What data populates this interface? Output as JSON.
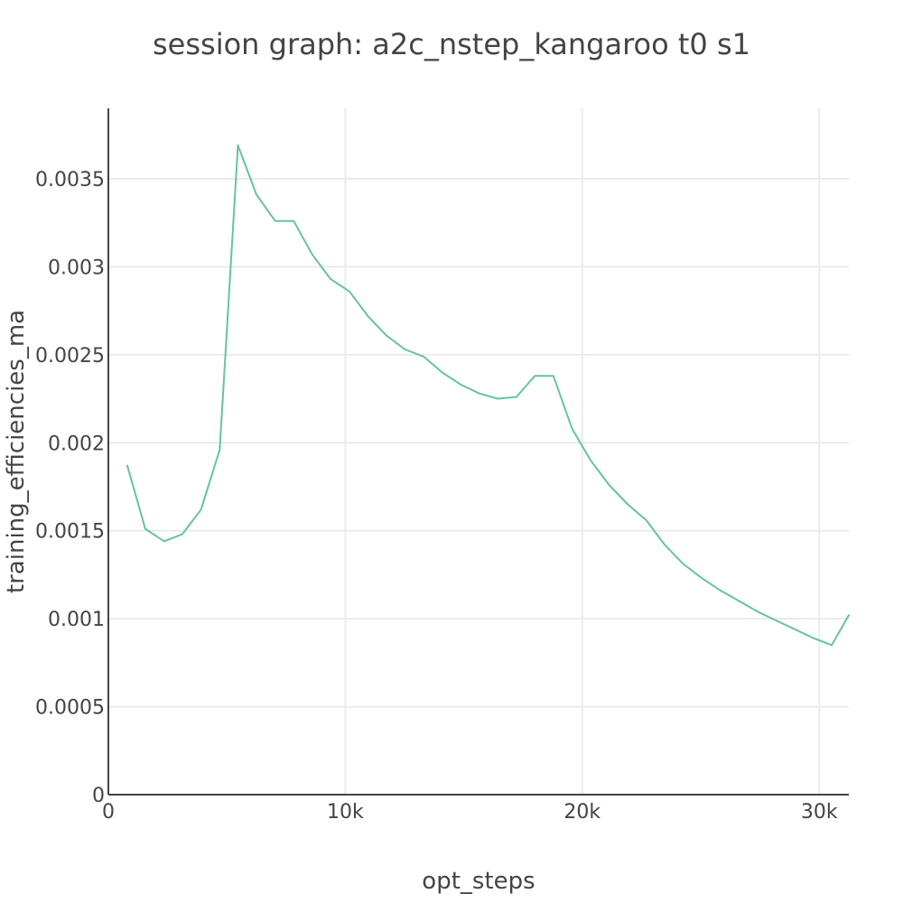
{
  "colors": {
    "series": "#66c2a5",
    "text": "#444444",
    "grid": "#ebebeb",
    "axis": "#444444"
  },
  "chart_data": {
    "type": "line",
    "title": "session graph: a2c_nstep_kangaroo t0 s1",
    "xlabel": "opt_steps",
    "ylabel": "training_efficiencies_ma",
    "xlim": [
      0,
      31250
    ],
    "ylim": [
      0,
      0.0039
    ],
    "grid": true,
    "legend": "none",
    "x_ticks": [
      {
        "value": 0,
        "label": "0"
      },
      {
        "value": 10000,
        "label": "10k"
      },
      {
        "value": 20000,
        "label": "20k"
      },
      {
        "value": 30000,
        "label": "30k"
      }
    ],
    "y_ticks": [
      {
        "value": 0,
        "label": "0"
      },
      {
        "value": 0.0005,
        "label": "0.0005"
      },
      {
        "value": 0.001,
        "label": "0.001"
      },
      {
        "value": 0.0015,
        "label": "0.0015"
      },
      {
        "value": 0.002,
        "label": "0.002"
      },
      {
        "value": 0.0025,
        "label": "0.0025"
      },
      {
        "value": 0.003,
        "label": "0.003"
      },
      {
        "value": 0.0035,
        "label": "0.0035"
      }
    ],
    "series": [
      {
        "x": [
          800,
          1560,
          2350,
          3120,
          3910,
          4700,
          5470,
          6250,
          7040,
          7820,
          8600,
          9380,
          10170,
          10950,
          11730,
          12520,
          13300,
          14080,
          14870,
          15650,
          16430,
          17220,
          18000,
          18780,
          19570,
          20350,
          21130,
          21920,
          22700,
          23480,
          24270,
          25050,
          25830,
          26620,
          27400,
          28180,
          28970,
          29750,
          30530,
          31250
        ],
        "y": [
          0.00187,
          0.00151,
          0.00144,
          0.00148,
          0.00162,
          0.00196,
          0.00369,
          0.00341,
          0.00326,
          0.00326,
          0.00307,
          0.00293,
          0.00286,
          0.00272,
          0.00261,
          0.00253,
          0.00249,
          0.0024,
          0.00233,
          0.00228,
          0.00225,
          0.00226,
          0.00238,
          0.00238,
          0.00208,
          0.0019,
          0.00176,
          0.00165,
          0.00156,
          0.00142,
          0.00131,
          0.00123,
          0.00116,
          0.0011,
          0.00104,
          0.00099,
          0.00094,
          0.00089,
          0.00085,
          0.00102
        ]
      }
    ]
  }
}
